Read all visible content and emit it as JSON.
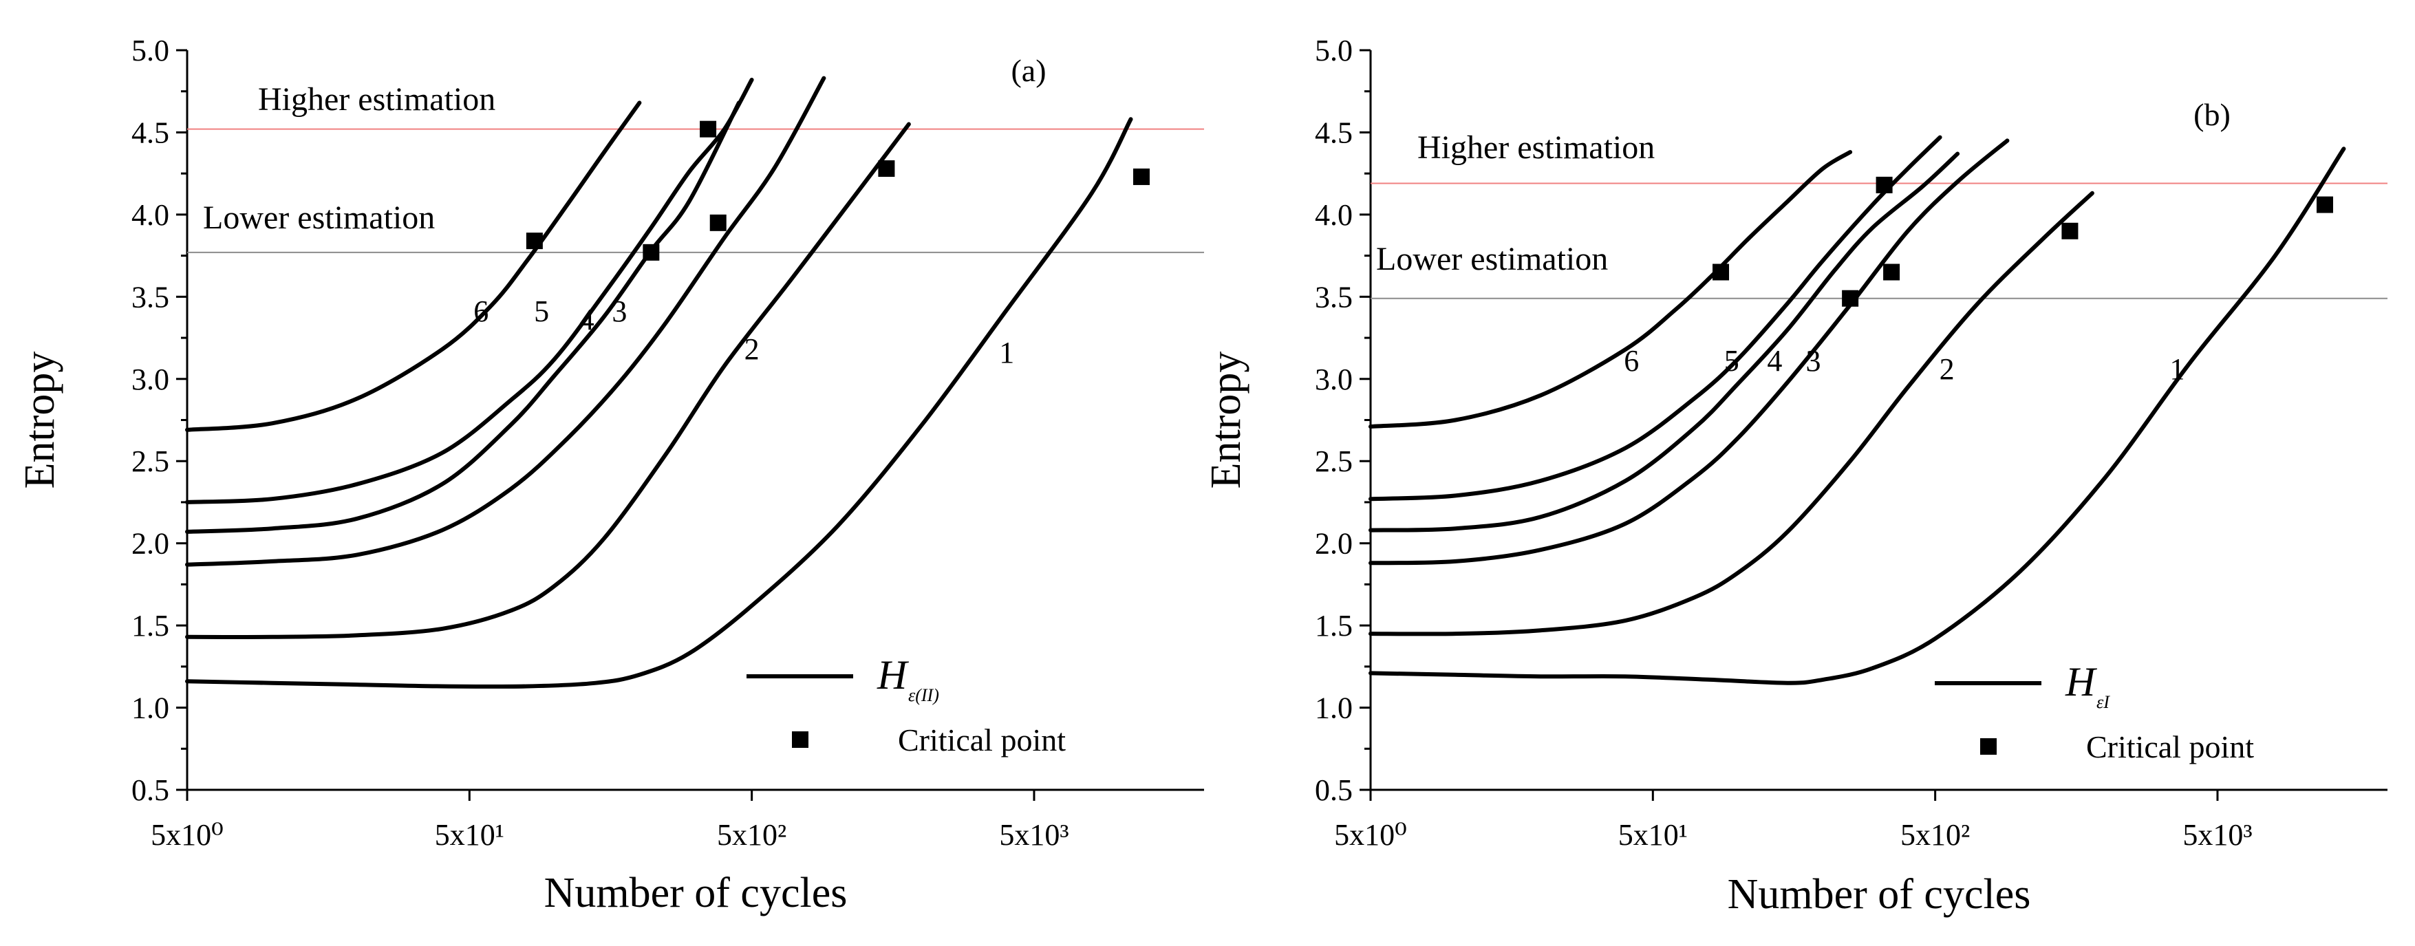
{
  "chart_data": [
    {
      "type": "line",
      "panel_label": "(a)",
      "xlabel": "Number of cycles",
      "ylabel": "Entropy",
      "xscale": "log",
      "xlim": [
        5,
        20000
      ],
      "ylim": [
        0.5,
        5.0
      ],
      "x_ticks": [
        {
          "value": 5,
          "label": "5x10⁰"
        },
        {
          "value": 50,
          "label": "5x10¹"
        },
        {
          "value": 500,
          "label": "5x10²"
        },
        {
          "value": 5000,
          "label": "5x10³"
        }
      ],
      "y_ticks": [
        {
          "value": 0.5,
          "label": "0.5"
        },
        {
          "value": 1.0,
          "label": "1.0"
        },
        {
          "value": 1.5,
          "label": "1.5"
        },
        {
          "value": 2.0,
          "label": "2.0"
        },
        {
          "value": 2.5,
          "label": "2.5"
        },
        {
          "value": 3.0,
          "label": "3.0"
        },
        {
          "value": 3.5,
          "label": "3.5"
        },
        {
          "value": 4.0,
          "label": "4.0"
        },
        {
          "value": 4.5,
          "label": "4.5"
        },
        {
          "value": 5.0,
          "label": "5.0"
        }
      ],
      "reference_lines": [
        {
          "name": "Higher estimation",
          "y": 4.52,
          "color": "#f08080"
        },
        {
          "name": "Lower estimation",
          "y": 3.77,
          "color": "#8c8c8c"
        }
      ],
      "legend": {
        "line_symbol": "H",
        "line_subscript": "ε(II)",
        "marker_label": "Critical point",
        "position": "bottom-right"
      },
      "series": [
        {
          "name": "1",
          "label_at": [
            4000,
            3.1
          ],
          "x": [
            5,
            10,
            20,
            40,
            80,
            140,
            200,
            300,
            500,
            1000,
            2000,
            4000,
            8000,
            11000
          ],
          "y": [
            1.16,
            1.15,
            1.14,
            1.13,
            1.13,
            1.15,
            1.2,
            1.33,
            1.62,
            2.1,
            2.72,
            3.42,
            4.13,
            4.58
          ]
        },
        {
          "name": "2",
          "label_at": [
            500,
            3.12
          ],
          "x": [
            5,
            10,
            20,
            40,
            70,
            100,
            150,
            250,
            400,
            700,
            1200,
            1800
          ],
          "y": [
            1.43,
            1.43,
            1.44,
            1.48,
            1.59,
            1.74,
            2.03,
            2.55,
            3.08,
            3.62,
            4.15,
            4.55
          ]
        },
        {
          "name": "3",
          "label_at": [
            170,
            3.35
          ],
          "x": [
            5,
            10,
            20,
            40,
            70,
            110,
            170,
            250,
            400,
            600,
            900
          ],
          "y": [
            1.87,
            1.89,
            1.93,
            2.08,
            2.33,
            2.63,
            2.98,
            3.35,
            3.86,
            4.28,
            4.83
          ]
        },
        {
          "name": "4",
          "label_at": [
            130,
            3.3
          ],
          "x": [
            5,
            10,
            20,
            40,
            70,
            100,
            150,
            220,
            300,
            450
          ],
          "y": [
            2.07,
            2.09,
            2.15,
            2.36,
            2.72,
            3.02,
            3.38,
            3.78,
            4.08,
            4.68
          ]
        },
        {
          "name": "5",
          "label_at": [
            90,
            3.35
          ],
          "x": [
            5,
            10,
            20,
            40,
            70,
            100,
            150,
            220,
            300,
            400,
            500
          ],
          "y": [
            2.25,
            2.27,
            2.36,
            2.55,
            2.87,
            3.12,
            3.52,
            3.92,
            4.26,
            4.52,
            4.82
          ]
        },
        {
          "name": "6",
          "label_at": [
            55,
            3.35
          ],
          "x": [
            5,
            10,
            20,
            40,
            60,
            80,
            110,
            150,
            200
          ],
          "y": [
            2.69,
            2.73,
            2.88,
            3.18,
            3.45,
            3.72,
            4.05,
            4.38,
            4.68
          ]
        }
      ],
      "critical_points": [
        {
          "x": 12000,
          "y": 4.23
        },
        {
          "x": 1500,
          "y": 4.28
        },
        {
          "x": 380,
          "y": 3.95
        },
        {
          "x": 220,
          "y": 3.77
        },
        {
          "x": 350,
          "y": 4.52
        },
        {
          "x": 85,
          "y": 3.84
        }
      ]
    },
    {
      "type": "line",
      "panel_label": "(b)",
      "xlabel": "Number of cycles",
      "ylabel": "Entropy",
      "xscale": "log",
      "xlim": [
        5,
        20000
      ],
      "ylim": [
        0.5,
        5.0
      ],
      "x_ticks": [
        {
          "value": 5,
          "label": "5x10⁰"
        },
        {
          "value": 50,
          "label": "5x10¹"
        },
        {
          "value": 500,
          "label": "5x10²"
        },
        {
          "value": 5000,
          "label": "5x10³"
        }
      ],
      "y_ticks": [
        {
          "value": 0.5,
          "label": "0.5"
        },
        {
          "value": 1.0,
          "label": "1.0"
        },
        {
          "value": 1.5,
          "label": "1.5"
        },
        {
          "value": 2.0,
          "label": "2.0"
        },
        {
          "value": 2.5,
          "label": "2.5"
        },
        {
          "value": 3.0,
          "label": "3.0"
        },
        {
          "value": 3.5,
          "label": "3.5"
        },
        {
          "value": 4.0,
          "label": "4.0"
        },
        {
          "value": 4.5,
          "label": "4.5"
        },
        {
          "value": 5.0,
          "label": "5.0"
        }
      ],
      "reference_lines": [
        {
          "name": "Higher estimation",
          "y": 4.19,
          "color": "#f08080"
        },
        {
          "name": "Lower estimation",
          "y": 3.49,
          "color": "#8c8c8c"
        }
      ],
      "legend": {
        "line_symbol": "H",
        "line_subscript": "εI",
        "marker_label": "Critical point",
        "position": "bottom-right"
      },
      "series": [
        {
          "name": "1",
          "label_at": [
            3600,
            3.0
          ],
          "x": [
            5,
            10,
            20,
            40,
            80,
            150,
            200,
            300,
            500,
            1000,
            2000,
            4000,
            8000,
            14000
          ],
          "y": [
            1.21,
            1.2,
            1.19,
            1.19,
            1.17,
            1.15,
            1.17,
            1.24,
            1.42,
            1.83,
            2.4,
            3.1,
            3.75,
            4.4
          ]
        },
        {
          "name": "2",
          "label_at": [
            550,
            3.0
          ],
          "x": [
            5,
            10,
            20,
            40,
            70,
            100,
            150,
            250,
            400,
            700,
            1200,
            1800
          ],
          "y": [
            1.45,
            1.45,
            1.47,
            1.53,
            1.67,
            1.82,
            2.07,
            2.5,
            2.95,
            3.45,
            3.85,
            4.13
          ]
        },
        {
          "name": "3",
          "label_at": [
            185,
            3.05
          ],
          "x": [
            5,
            10,
            20,
            40,
            70,
            100,
            150,
            250,
            400,
            600,
            900
          ],
          "y": [
            1.88,
            1.89,
            1.96,
            2.12,
            2.4,
            2.64,
            2.98,
            3.45,
            3.9,
            4.2,
            4.45
          ]
        },
        {
          "name": "4",
          "label_at": [
            135,
            3.05
          ],
          "x": [
            5,
            10,
            20,
            40,
            70,
            100,
            150,
            220,
            300,
            450,
            600
          ],
          "y": [
            2.08,
            2.09,
            2.16,
            2.38,
            2.7,
            2.97,
            3.3,
            3.66,
            3.92,
            4.17,
            4.37
          ]
        },
        {
          "name": "5",
          "label_at": [
            95,
            3.05
          ],
          "x": [
            5,
            10,
            20,
            40,
            70,
            100,
            150,
            200,
            300,
            400,
            520
          ],
          "y": [
            2.27,
            2.29,
            2.38,
            2.58,
            2.88,
            3.12,
            3.46,
            3.72,
            4.06,
            4.28,
            4.47
          ]
        },
        {
          "name": "6",
          "label_at": [
            42,
            3.05
          ],
          "x": [
            5,
            10,
            20,
            40,
            60,
            80,
            110,
            150,
            200,
            250
          ],
          "y": [
            2.71,
            2.75,
            2.9,
            3.18,
            3.42,
            3.62,
            3.86,
            4.08,
            4.28,
            4.38
          ]
        }
      ],
      "critical_points": [
        {
          "x": 12000,
          "y": 4.06
        },
        {
          "x": 1500,
          "y": 3.9
        },
        {
          "x": 350,
          "y": 3.65
        },
        {
          "x": 250,
          "y": 3.49
        },
        {
          "x": 330,
          "y": 4.18
        },
        {
          "x": 87,
          "y": 3.65
        }
      ]
    }
  ]
}
